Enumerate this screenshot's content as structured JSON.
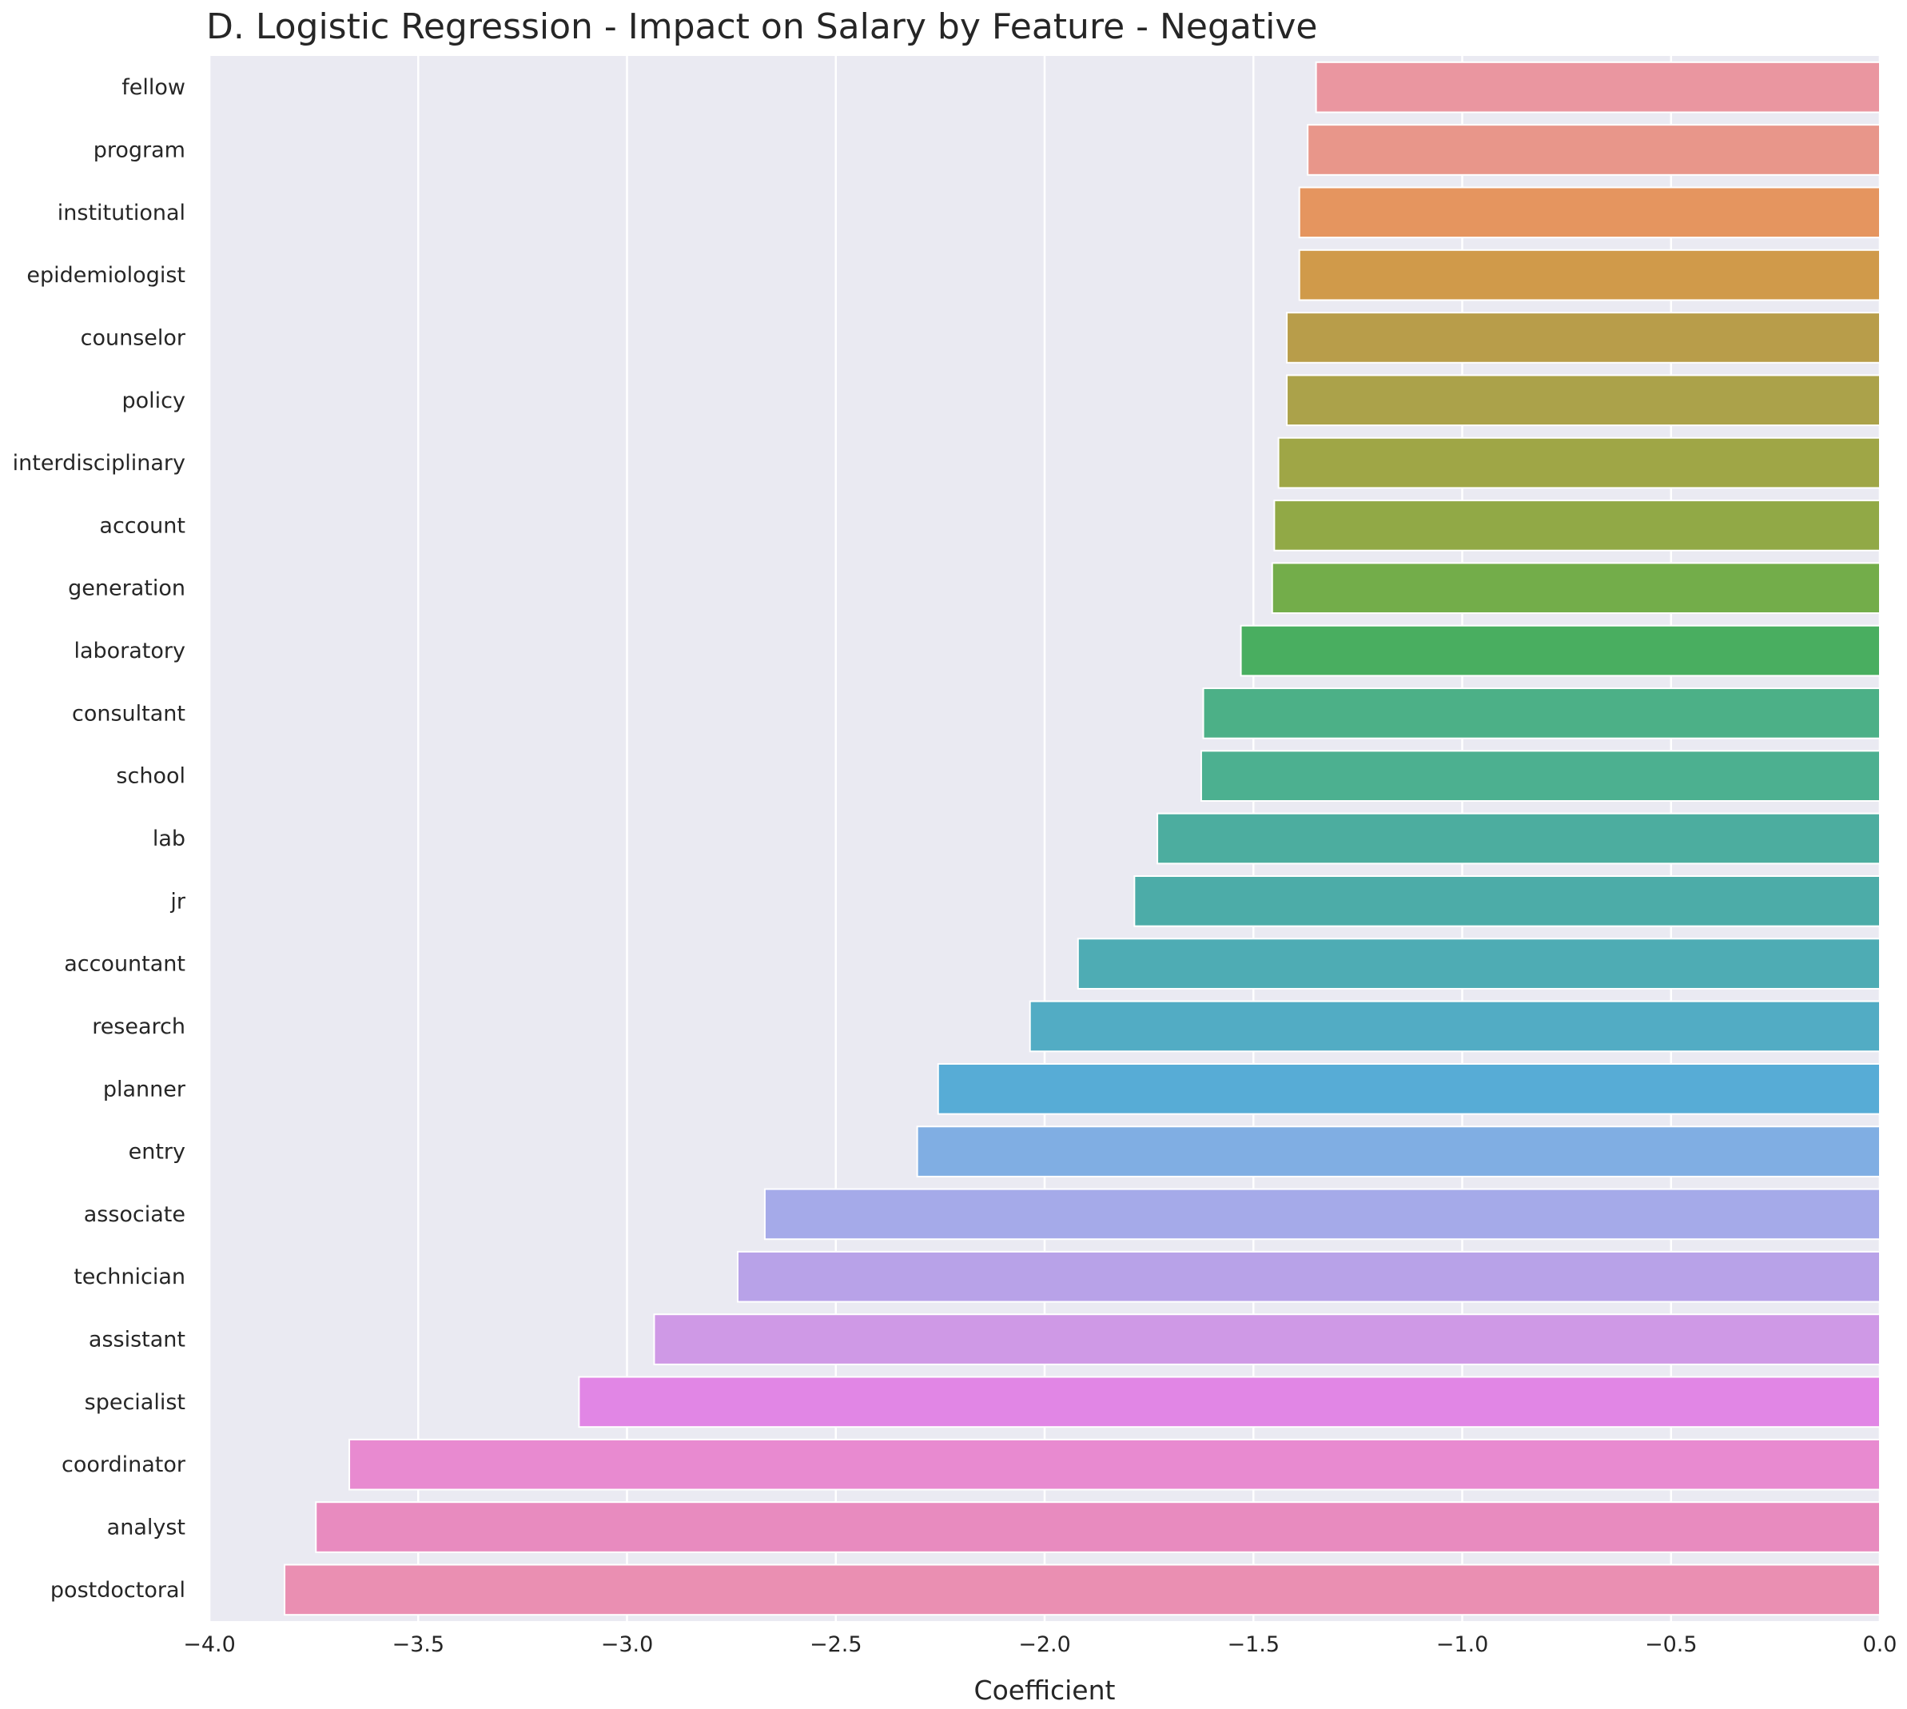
{
  "chart_data": {
    "type": "bar",
    "orientation": "horizontal",
    "title": "D. Logistic Regression - Impact on Salary by Feature - Negative",
    "xlabel": "Coefficient",
    "ylabel": "",
    "xlim": [
      -4.0,
      0.0
    ],
    "xticks": [
      "−4.0",
      "−3.5",
      "−3.0",
      "−2.5",
      "−2.0",
      "−1.5",
      "−1.0",
      "−0.5",
      "0.0"
    ],
    "grid": true,
    "background": "#eaeaf2",
    "categories": [
      "fellow",
      "program",
      "institutional",
      "epidemiologist",
      "counselor",
      "policy",
      "interdisciplinary",
      "account",
      "generation",
      "laboratory",
      "consultant",
      "school",
      "lab",
      "jr",
      "accountant",
      "research",
      "planner",
      "entry",
      "associate",
      "technician",
      "assistant",
      "specialist",
      "coordinator",
      "analyst",
      "postdoctoral"
    ],
    "values": [
      -1.35,
      -1.37,
      -1.39,
      -1.39,
      -1.42,
      -1.42,
      -1.44,
      -1.45,
      -1.455,
      -1.53,
      -1.62,
      -1.625,
      -1.73,
      -1.785,
      -1.92,
      -2.035,
      -2.255,
      -2.305,
      -2.67,
      -2.735,
      -2.935,
      -3.115,
      -3.665,
      -3.745,
      -3.82
    ],
    "colors": [
      "#ea96a0",
      "#e8968a",
      "#e5955f",
      "#d09a4a",
      "#b89d4a",
      "#aba24a",
      "#9fa646",
      "#91a946",
      "#73ad4a",
      "#49ae60",
      "#4cb087",
      "#4cb090",
      "#4cad9f",
      "#4caca8",
      "#4eacb4",
      "#52acc4",
      "#57acd6",
      "#80aee3",
      "#a5aae9",
      "#b8a2e8",
      "#cf99e6",
      "#e186e5",
      "#e88ad0",
      "#e88bbf",
      "#ea8fb2"
    ]
  }
}
